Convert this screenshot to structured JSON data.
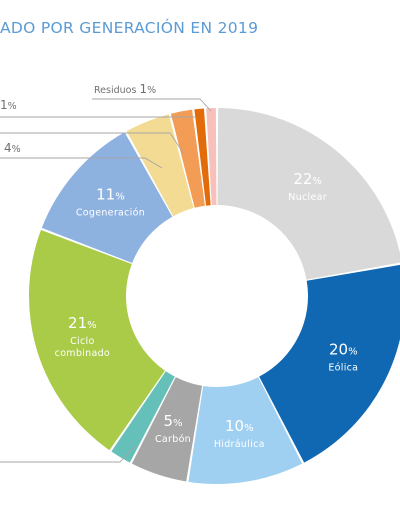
{
  "title": "ADO POR GENERACIÓN EN 2019",
  "chart_data": {
    "type": "pie",
    "donut": true,
    "slices": [
      {
        "label": "Nuclear",
        "value": 22,
        "pct": "22",
        "color": "#d9d9d9"
      },
      {
        "label": "Eólica",
        "value": 20,
        "pct": "20",
        "color": "#1168b2"
      },
      {
        "label": "Hidráulica",
        "value": 10,
        "pct": "10",
        "color": "#9fd0f2"
      },
      {
        "label": "Carbón",
        "value": 5,
        "pct": "5",
        "color": "#a6a6a6"
      },
      {
        "label": "",
        "value": 2,
        "pct": "",
        "color": "#64c0b8"
      },
      {
        "label": "Ciclo combinado",
        "value": 21,
        "pct": "21",
        "color": "#a9cb47"
      },
      {
        "label": "Cogeneración",
        "value": 11,
        "pct": "11",
        "color": "#8eb2e0"
      },
      {
        "label": "",
        "value": 4,
        "pct": "4",
        "color": "#f3db94"
      },
      {
        "label": "",
        "value": 2,
        "pct": "",
        "color": "#f29c55"
      },
      {
        "label": "",
        "value": 1,
        "pct": "1",
        "color": "#e36c0a"
      },
      {
        "label": "Residuos",
        "value": 1,
        "pct": "1",
        "color": "#f7c0bb"
      }
    ],
    "percent_sign": "%",
    "leader_labels": {
      "top": "Residuos",
      "top_pct": "1",
      "second_pct": "1",
      "third_pct": "4"
    }
  }
}
